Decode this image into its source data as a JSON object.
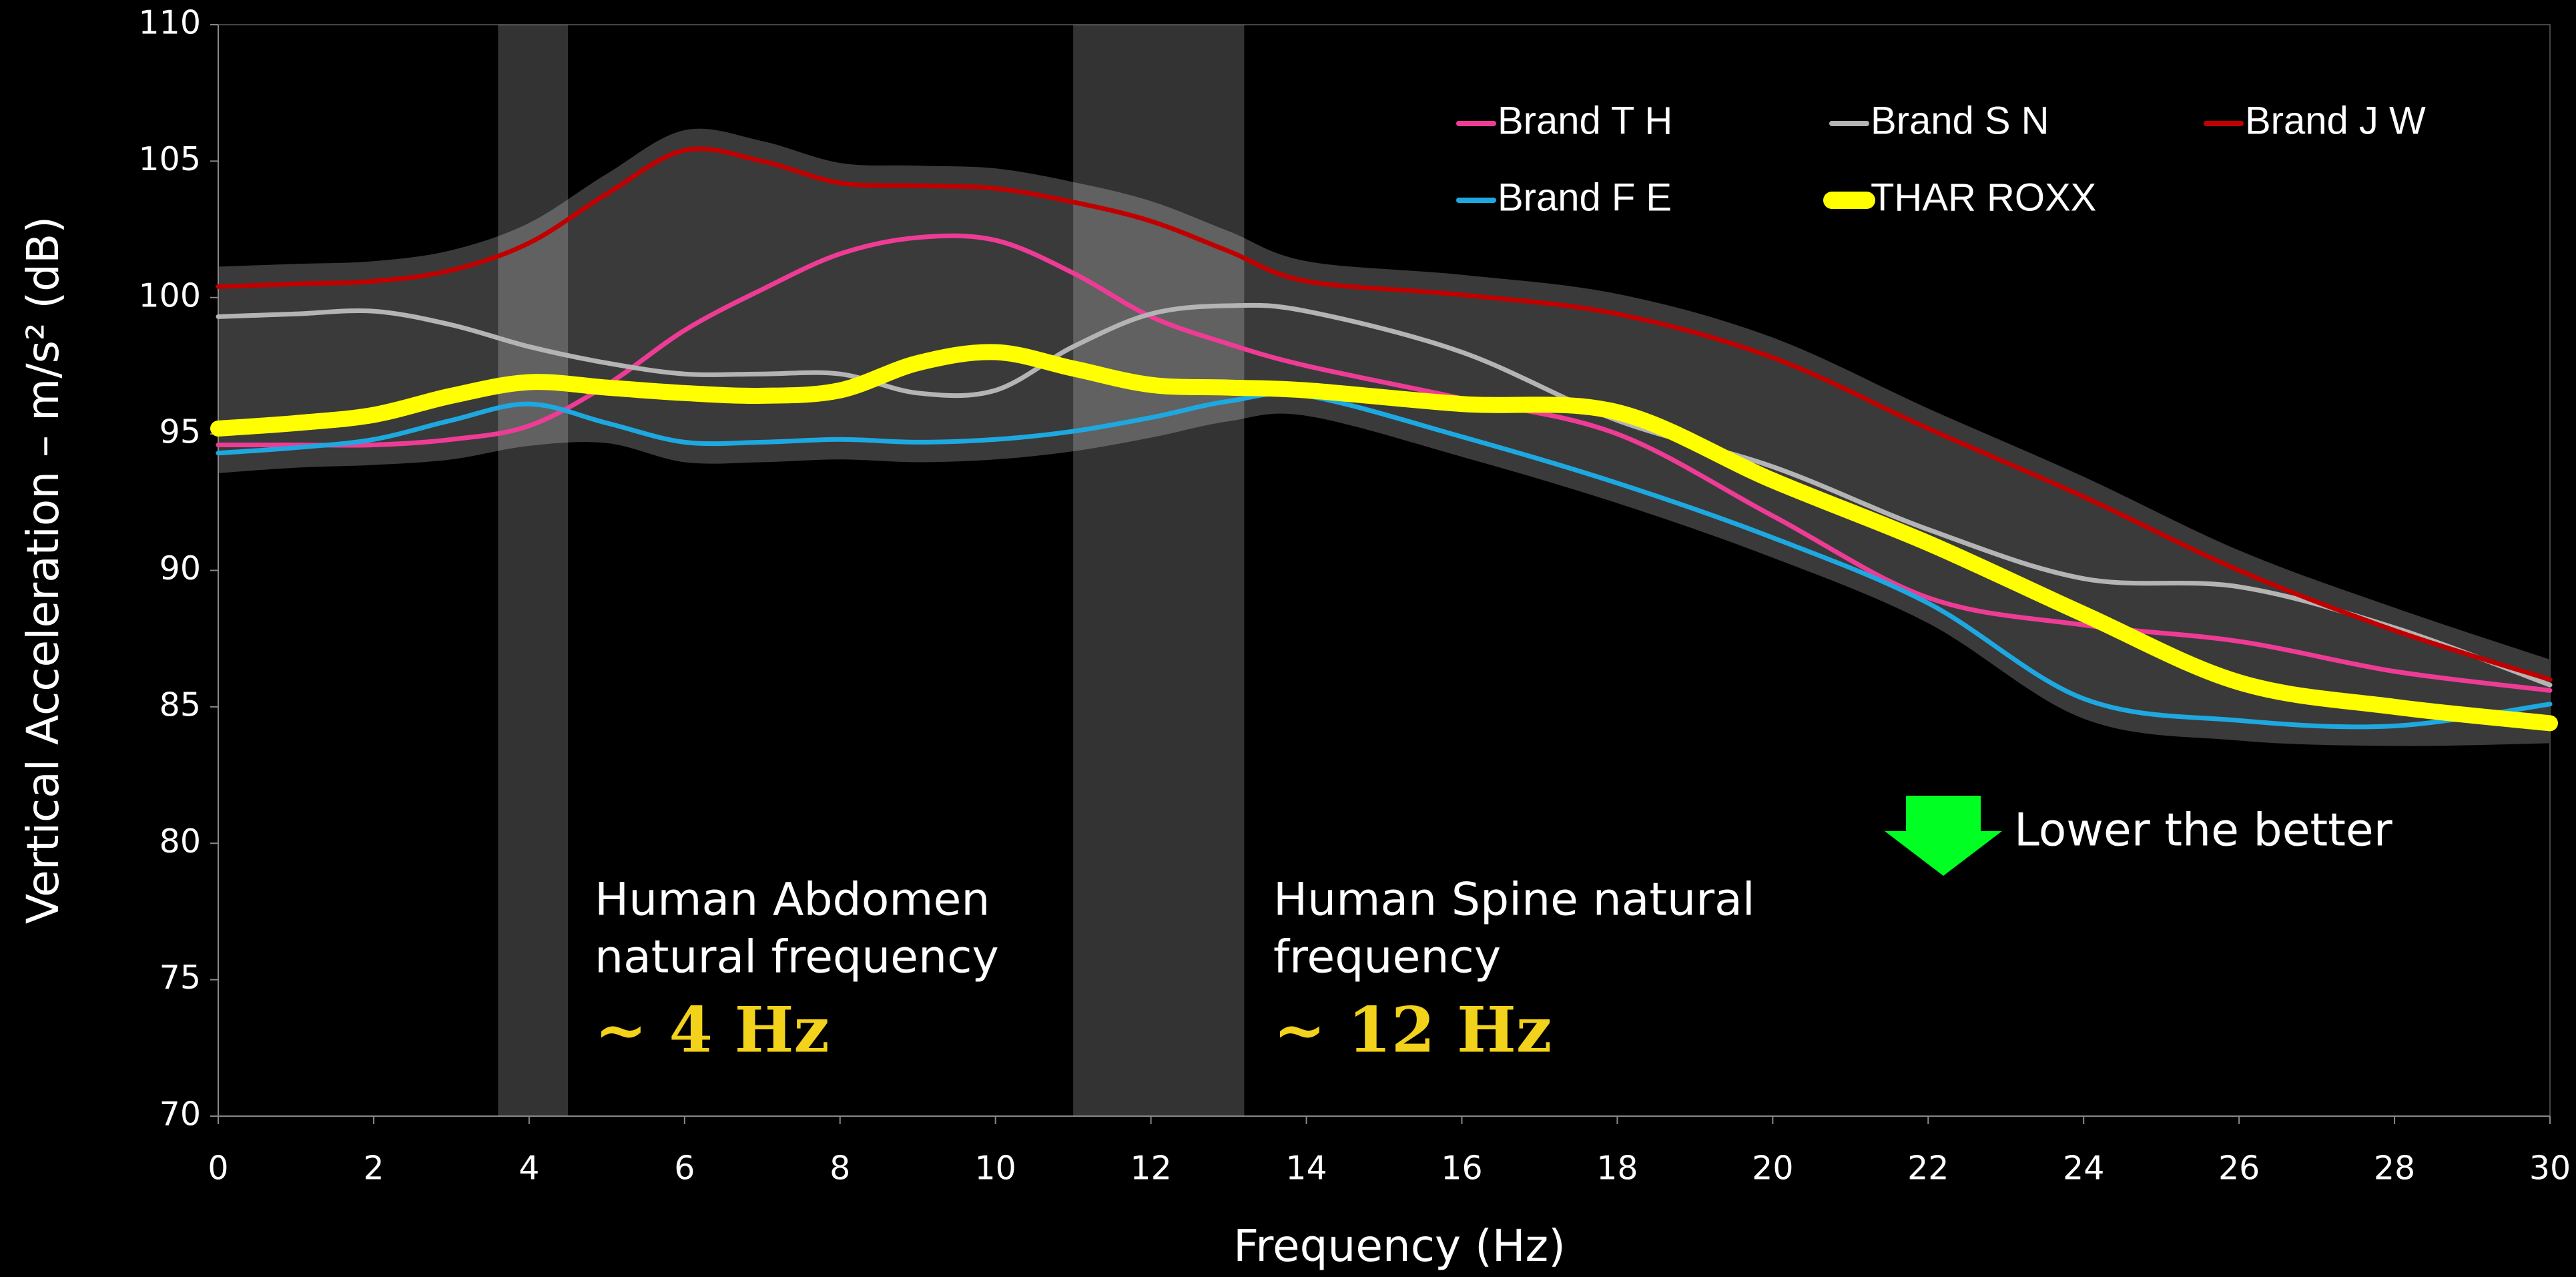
{
  "chart_data": {
    "type": "line",
    "x_label": "Frequency (Hz)",
    "y_label": "Vertical Acceleration – m/s² (dB)",
    "x": [
      0,
      1,
      2,
      3,
      4,
      5,
      6,
      7,
      8,
      9,
      10,
      11,
      12,
      13,
      14,
      16,
      18,
      20,
      22,
      24,
      26,
      28,
      30
    ],
    "series": [
      {
        "name": "Brand T H",
        "color": "#ee3c96",
        "values": [
          94.6,
          94.6,
          94.6,
          94.8,
          95.3,
          96.8,
          98.8,
          100.3,
          101.6,
          102.2,
          102.1,
          100.9,
          99.3,
          98.3,
          97.5,
          96.3,
          95,
          92,
          89,
          88,
          87.4,
          86.3,
          85.6
        ]
      },
      {
        "name": "Brand S N",
        "color": "#b4b4b4",
        "values": [
          99.3,
          99.4,
          99.5,
          99,
          98.2,
          97.6,
          97.2,
          97.2,
          97.2,
          96.5,
          96.6,
          98.2,
          99.4,
          99.7,
          99.5,
          98,
          95.5,
          93.8,
          91.5,
          89.7,
          89.4,
          87.9,
          85.8
        ]
      },
      {
        "name": "Brand J W",
        "color": "#c00000",
        "values": [
          100.4,
          100.5,
          100.6,
          101,
          102,
          103.8,
          105.4,
          105,
          104.2,
          104.1,
          104,
          103.5,
          102.8,
          101.7,
          100.6,
          100.1,
          99.4,
          97.8,
          95.2,
          92.7,
          90,
          87.8,
          86
        ]
      },
      {
        "name": "Brand F E",
        "color": "#1ea8e0",
        "values": [
          94.3,
          94.5,
          94.8,
          95.5,
          96.1,
          95.4,
          94.7,
          94.7,
          94.8,
          94.7,
          94.8,
          95.1,
          95.6,
          96.2,
          96.4,
          94.9,
          93.2,
          91.2,
          88.8,
          85.3,
          84.5,
          84.3,
          85.1
        ]
      },
      {
        "name": "THAR ROXX",
        "color": "#ffff00",
        "values": [
          95.2,
          95.4,
          95.7,
          96.4,
          96.9,
          96.7,
          96.5,
          96.4,
          96.6,
          97.6,
          98,
          97.4,
          96.8,
          96.7,
          96.6,
          96.1,
          95.8,
          93.3,
          91,
          88.4,
          85.9,
          85,
          84.4
        ]
      }
    ],
    "xlim": [
      0,
      30
    ],
    "xticks": [
      0,
      2,
      4,
      6,
      8,
      10,
      12,
      14,
      16,
      18,
      20,
      22,
      24,
      26,
      28,
      30
    ],
    "ylim": [
      70,
      110
    ],
    "yticks": [
      70,
      75,
      80,
      85,
      90,
      95,
      100,
      105,
      110
    ],
    "highlight_bands": [
      [
        3.6,
        4.5
      ],
      [
        11,
        13.2
      ]
    ],
    "annotations": [
      {
        "lines": [
          "Human Abdomen",
          "natural frequency"
        ],
        "highlight": "~ 4 Hz"
      },
      {
        "lines": [
          "Human Spine natural",
          "frequency"
        ],
        "highlight": "~ 12 Hz"
      }
    ],
    "note": "Lower the better"
  }
}
